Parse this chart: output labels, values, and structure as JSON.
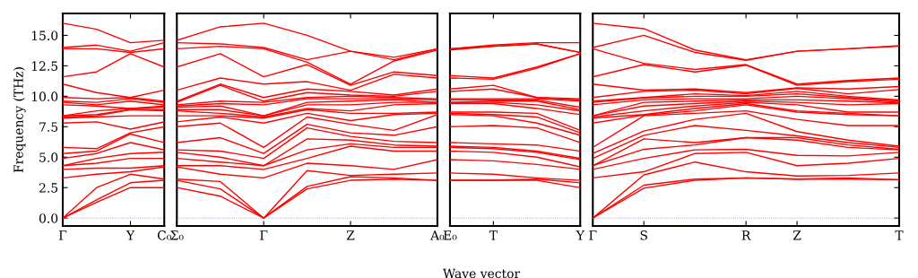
{
  "chart_data": [
    {
      "type": "line",
      "ylabel": "Frequency (THz)",
      "categories": [
        "Γ",
        null,
        "Y",
        "C₀"
      ],
      "ylim": [
        -0.65,
        16.8
      ],
      "yticks": [
        {
          "value": 0,
          "label": "0.0"
        },
        {
          "value": 2.5,
          "label": "2.5"
        },
        {
          "value": 5,
          "label": "5.0"
        },
        {
          "value": 7.5,
          "label": "7.5"
        },
        {
          "value": 10,
          "label": "10.0"
        },
        {
          "value": 12.5,
          "label": "12.5"
        },
        {
          "value": 15,
          "label": "15.0"
        }
      ],
      "ref_lines": [
        {
          "axis": "y",
          "value": 0,
          "label": null,
          "color": "#7b7bff",
          "line_style": "dotted"
        }
      ],
      "series": [
        {
          "color": "#ff0000",
          "values": [
            0,
            1.3,
            2.5,
            2.5
          ]
        },
        {
          "color": "#ff0000",
          "values": [
            0,
            1.5,
            2.9,
            3.1
          ]
        },
        {
          "color": "#ff0000",
          "values": [
            0,
            2.5,
            3.6,
            3.2
          ]
        },
        {
          "color": "#ff0000",
          "values": [
            3.3,
            3.6,
            3.8,
            4.2
          ]
        },
        {
          "color": "#ff0000",
          "values": [
            4.0,
            4.1,
            4.1,
            4.3
          ]
        },
        {
          "color": "#ff0000",
          "values": [
            4.3,
            4.5,
            4.9,
            4.9
          ]
        },
        {
          "color": "#ff0000",
          "values": [
            4.3,
            4.9,
            5.3,
            5.4
          ]
        },
        {
          "color": "#ff0000",
          "values": [
            4.9,
            5.3,
            6.2,
            5.6
          ]
        },
        {
          "color": "#ff0000",
          "values": [
            5.3,
            5.5,
            6.9,
            6.2
          ]
        },
        {
          "color": "#ff0000",
          "values": [
            5.8,
            5.7,
            7.0,
            7.5
          ]
        },
        {
          "color": "#ff0000",
          "values": [
            7.8,
            7.9,
            7.3,
            7.9
          ]
        },
        {
          "color": "#ff0000",
          "values": [
            8.2,
            8.3,
            8.4,
            8.4
          ]
        },
        {
          "color": "#ff0000",
          "values": [
            8.3,
            8.4,
            8.9,
            8.8
          ]
        },
        {
          "color": "#ff0000",
          "values": [
            8.4,
            8.5,
            8.9,
            8.9
          ]
        },
        {
          "color": "#ff0000",
          "values": [
            8.4,
            8.8,
            9.0,
            9.1
          ]
        },
        {
          "color": "#ff0000",
          "values": [
            9.3,
            9.2,
            9.0,
            9.2
          ]
        },
        {
          "color": "#ff0000",
          "values": [
            9.5,
            9.3,
            9.6,
            9.3
          ]
        },
        {
          "color": "#ff0000",
          "values": [
            9.6,
            9.5,
            9.8,
            9.5
          ]
        },
        {
          "color": "#ff0000",
          "values": [
            9.9,
            9.8,
            9.9,
            9.6
          ]
        },
        {
          "color": "#ff0000",
          "values": [
            11.0,
            10.3,
            9.9,
            10.5
          ]
        },
        {
          "color": "#ff0000",
          "values": [
            11.6,
            12.0,
            13.5,
            12.4
          ]
        },
        {
          "color": "#ff0000",
          "values": [
            13.9,
            13.9,
            13.6,
            13.9
          ]
        },
        {
          "color": "#ff0000",
          "values": [
            14.0,
            14.2,
            13.7,
            14.4
          ]
        },
        {
          "color": "#ff0000",
          "values": [
            16.0,
            15.5,
            14.4,
            14.6
          ]
        }
      ]
    },
    {
      "type": "line",
      "categories": [
        "Σ₀",
        null,
        "Γ",
        null,
        "Z",
        null,
        "A₀"
      ],
      "ylim": [
        -0.65,
        16.8
      ],
      "tick_labels": "x",
      "ref_lines": [
        {
          "axis": "y",
          "value": 0,
          "label": null,
          "color": "#7b7bff",
          "line_style": "dotted"
        }
      ],
      "series": [
        {
          "color": "#ff0000",
          "values": [
            2.5,
            1.8,
            0,
            2.4,
            3.1,
            3.2,
            3.1
          ]
        },
        {
          "color": "#ff0000",
          "values": [
            3.1,
            2.4,
            0,
            2.6,
            3.4,
            3.3,
            3.1
          ]
        },
        {
          "color": "#ff0000",
          "values": [
            3.2,
            3.0,
            0,
            3.9,
            3.5,
            3.6,
            3.7
          ]
        },
        {
          "color": "#ff0000",
          "values": [
            4.2,
            3.6,
            3.3,
            4.5,
            4.3,
            4.0,
            4.8
          ]
        },
        {
          "color": "#ff0000",
          "values": [
            4.3,
            4.3,
            4.0,
            4.9,
            5.9,
            5.5,
            5.5
          ]
        },
        {
          "color": "#ff0000",
          "values": [
            4.9,
            4.6,
            4.3,
            5.6,
            6.1,
            5.8,
            5.8
          ]
        },
        {
          "color": "#ff0000",
          "values": [
            5.4,
            5.0,
            4.3,
            6.5,
            6.4,
            6.0,
            5.9
          ]
        },
        {
          "color": "#ff0000",
          "values": [
            5.6,
            5.5,
            4.9,
            7.4,
            6.7,
            6.3,
            6.2
          ]
        },
        {
          "color": "#ff0000",
          "values": [
            6.2,
            6.6,
            5.3,
            7.7,
            7.0,
            6.8,
            7.5
          ]
        },
        {
          "color": "#ff0000",
          "values": [
            7.5,
            7.8,
            5.8,
            8.3,
            7.7,
            7.2,
            8.5
          ]
        },
        {
          "color": "#ff0000",
          "values": [
            7.9,
            8.3,
            7.8,
            8.6,
            8.0,
            8.5,
            8.6
          ]
        },
        {
          "color": "#ff0000",
          "values": [
            8.4,
            8.4,
            8.2,
            8.9,
            8.6,
            8.6,
            8.7
          ]
        },
        {
          "color": "#ff0000",
          "values": [
            8.8,
            8.6,
            8.3,
            9.0,
            8.8,
            9.3,
            9.4
          ]
        },
        {
          "color": "#ff0000",
          "values": [
            8.9,
            8.9,
            8.4,
            9.3,
            9.3,
            9.5,
            9.5
          ]
        },
        {
          "color": "#ff0000",
          "values": [
            9.1,
            9.2,
            8.4,
            9.5,
            9.6,
            9.7,
            9.5
          ]
        },
        {
          "color": "#ff0000",
          "values": [
            9.2,
            9.4,
            9.3,
            9.8,
            9.8,
            9.8,
            9.7
          ]
        },
        {
          "color": "#ff0000",
          "values": [
            9.3,
            9.6,
            9.5,
            9.9,
            10.0,
            9.9,
            9.8
          ]
        },
        {
          "color": "#ff0000",
          "values": [
            9.5,
            10.9,
            9.6,
            10.3,
            10.1,
            10.0,
            10.4
          ]
        },
        {
          "color": "#ff0000",
          "values": [
            9.6,
            11.0,
            9.9,
            10.6,
            10.4,
            10.1,
            10.6
          ]
        },
        {
          "color": "#ff0000",
          "values": [
            10.5,
            11.5,
            11.0,
            11.2,
            10.5,
            11.8,
            11.5
          ]
        },
        {
          "color": "#ff0000",
          "values": [
            12.4,
            13.5,
            11.6,
            12.6,
            10.9,
            12.0,
            11.7
          ]
        },
        {
          "color": "#ff0000",
          "values": [
            13.9,
            14.1,
            13.9,
            12.8,
            11.0,
            12.9,
            13.8
          ]
        },
        {
          "color": "#ff0000",
          "values": [
            14.4,
            14.3,
            14.0,
            13.0,
            13.7,
            13.0,
            13.9
          ]
        },
        {
          "color": "#ff0000",
          "values": [
            14.6,
            15.7,
            16.0,
            15.0,
            13.7,
            13.2,
            13.9
          ]
        }
      ]
    },
    {
      "type": "line",
      "categories": [
        "E₀",
        "T",
        null,
        "Y"
      ],
      "xlabel": "Wave vector",
      "ylim": [
        -0.65,
        16.8
      ],
      "tick_labels": "x",
      "ref_lines": [
        {
          "axis": "y",
          "value": 0,
          "label": null,
          "color": "#7b7bff",
          "line_style": "dotted"
        }
      ],
      "series": [
        {
          "color": "#ff0000",
          "values": [
            3.1,
            3.1,
            3.1,
            2.5
          ]
        },
        {
          "color": "#ff0000",
          "values": [
            3.1,
            3.1,
            3.2,
            2.9
          ]
        },
        {
          "color": "#ff0000",
          "values": [
            3.7,
            3.6,
            3.3,
            3.1
          ]
        },
        {
          "color": "#ff0000",
          "values": [
            4.8,
            4.7,
            4.4,
            4.0
          ]
        },
        {
          "color": "#ff0000",
          "values": [
            5.5,
            5.4,
            5.0,
            4.2
          ]
        },
        {
          "color": "#ff0000",
          "values": [
            5.8,
            5.7,
            5.4,
            4.8
          ]
        },
        {
          "color": "#ff0000",
          "values": [
            5.9,
            5.8,
            5.5,
            4.9
          ]
        },
        {
          "color": "#ff0000",
          "values": [
            6.2,
            6.1,
            6.0,
            5.5
          ]
        },
        {
          "color": "#ff0000",
          "values": [
            7.5,
            7.6,
            7.4,
            6.2
          ]
        },
        {
          "color": "#ff0000",
          "values": [
            8.5,
            8.4,
            7.8,
            6.8
          ]
        },
        {
          "color": "#ff0000",
          "values": [
            8.6,
            8.5,
            8.3,
            7.0
          ]
        },
        {
          "color": "#ff0000",
          "values": [
            8.7,
            8.7,
            8.6,
            7.2
          ]
        },
        {
          "color": "#ff0000",
          "values": [
            9.4,
            9.4,
            9.0,
            8.5
          ]
        },
        {
          "color": "#ff0000",
          "values": [
            9.5,
            9.5,
            9.3,
            8.8
          ]
        },
        {
          "color": "#ff0000",
          "values": [
            9.5,
            9.6,
            9.6,
            8.9
          ]
        },
        {
          "color": "#ff0000",
          "values": [
            9.7,
            9.7,
            9.7,
            9.1
          ]
        },
        {
          "color": "#ff0000",
          "values": [
            9.8,
            9.8,
            9.8,
            9.6
          ]
        },
        {
          "color": "#ff0000",
          "values": [
            10.4,
            10.6,
            9.9,
            9.7
          ]
        },
        {
          "color": "#ff0000",
          "values": [
            10.6,
            10.9,
            9.9,
            9.8
          ]
        },
        {
          "color": "#ff0000",
          "values": [
            11.5,
            11.4,
            12.3,
            13.5
          ]
        },
        {
          "color": "#ff0000",
          "values": [
            11.7,
            11.5,
            12.4,
            13.5
          ]
        },
        {
          "color": "#ff0000",
          "values": [
            13.8,
            14.1,
            14.3,
            13.6
          ]
        },
        {
          "color": "#ff0000",
          "values": [
            13.9,
            14.1,
            14.3,
            13.6
          ]
        },
        {
          "color": "#ff0000",
          "values": [
            13.9,
            14.2,
            14.4,
            14.4
          ]
        }
      ]
    },
    {
      "type": "line",
      "categories": [
        "Γ",
        "S",
        null,
        "R",
        "Z",
        null,
        "T"
      ],
      "ylim": [
        -0.65,
        16.8
      ],
      "tick_labels": "x",
      "yticks": [
        0,
        2.5,
        5,
        7.5,
        10,
        12.5,
        15
      ],
      "ref_lines": [
        {
          "axis": "y",
          "value": 0,
          "label": null,
          "color": "#7b7bff",
          "line_style": "dotted"
        }
      ],
      "series": [
        {
          "color": "#ff0000",
          "values": [
            0,
            2.45,
            3.1,
            3.3,
            3.2,
            3.2,
            3.15
          ]
        },
        {
          "color": "#ff0000",
          "values": [
            0,
            2.7,
            3.2,
            3.3,
            3.2,
            3.3,
            3.15
          ]
        },
        {
          "color": "#ff0000",
          "values": [
            0,
            3.55,
            4.6,
            3.8,
            3.45,
            3.5,
            3.7
          ]
        },
        {
          "color": "#ff0000",
          "values": [
            3.3,
            3.8,
            5.3,
            5.4,
            4.3,
            4.5,
            4.9
          ]
        },
        {
          "color": "#ff0000",
          "values": [
            4.0,
            4.9,
            5.6,
            5.65,
            5.15,
            5.1,
            5.4
          ]
        },
        {
          "color": "#ff0000",
          "values": [
            4.3,
            5.65,
            6.0,
            6.6,
            6.4,
            5.8,
            5.6
          ]
        },
        {
          "color": "#ff0000",
          "values": [
            4.3,
            6.5,
            6.2,
            6.6,
            6.6,
            6.0,
            5.65
          ]
        },
        {
          "color": "#ff0000",
          "values": [
            4.9,
            6.8,
            7.6,
            7.2,
            6.75,
            6.2,
            5.8
          ]
        },
        {
          "color": "#ff0000",
          "values": [
            5.3,
            7.15,
            8.1,
            8.6,
            7.1,
            6.4,
            5.9
          ]
        },
        {
          "color": "#ff0000",
          "values": [
            5.8,
            8.4,
            8.6,
            8.8,
            8.1,
            7.6,
            7.6
          ]
        },
        {
          "color": "#ff0000",
          "values": [
            7.8,
            8.45,
            8.8,
            9.3,
            8.7,
            8.5,
            8.4
          ]
        },
        {
          "color": "#ff0000",
          "values": [
            8.2,
            8.5,
            9.0,
            9.4,
            8.8,
            8.6,
            8.4
          ]
        },
        {
          "color": "#ff0000",
          "values": [
            8.3,
            8.8,
            9.2,
            9.5,
            9.3,
            8.7,
            8.7
          ]
        },
        {
          "color": "#ff0000",
          "values": [
            8.4,
            9.2,
            9.4,
            9.6,
            9.5,
            9.3,
            9.4
          ]
        },
        {
          "color": "#ff0000",
          "values": [
            8.4,
            9.5,
            9.6,
            9.7,
            9.7,
            9.6,
            9.45
          ]
        },
        {
          "color": "#ff0000",
          "values": [
            9.3,
            9.7,
            9.8,
            9.8,
            10.0,
            9.8,
            9.5
          ]
        },
        {
          "color": "#ff0000",
          "values": [
            9.5,
            9.85,
            10.0,
            10.0,
            10.2,
            9.9,
            9.6
          ]
        },
        {
          "color": "#ff0000",
          "values": [
            9.6,
            9.9,
            10.2,
            10.05,
            10.4,
            10.0,
            9.7
          ]
        },
        {
          "color": "#ff0000",
          "values": [
            9.9,
            10.4,
            10.5,
            10.2,
            10.65,
            10.2,
            10.55
          ]
        },
        {
          "color": "#ff0000",
          "values": [
            11.0,
            10.5,
            10.6,
            10.3,
            10.7,
            10.6,
            10.8
          ]
        },
        {
          "color": "#ff0000",
          "values": [
            11.6,
            12.6,
            12.0,
            12.55,
            10.9,
            11.2,
            11.4
          ]
        },
        {
          "color": "#ff0000",
          "values": [
            13.9,
            12.7,
            12.2,
            12.6,
            11.0,
            11.3,
            11.5
          ]
        },
        {
          "color": "#ff0000",
          "values": [
            14.0,
            15.0,
            13.6,
            12.95,
            13.7,
            13.9,
            14.1
          ]
        },
        {
          "color": "#ff0000",
          "values": [
            16.0,
            15.55,
            13.8,
            13.0,
            13.7,
            13.9,
            14.15
          ]
        }
      ]
    }
  ]
}
